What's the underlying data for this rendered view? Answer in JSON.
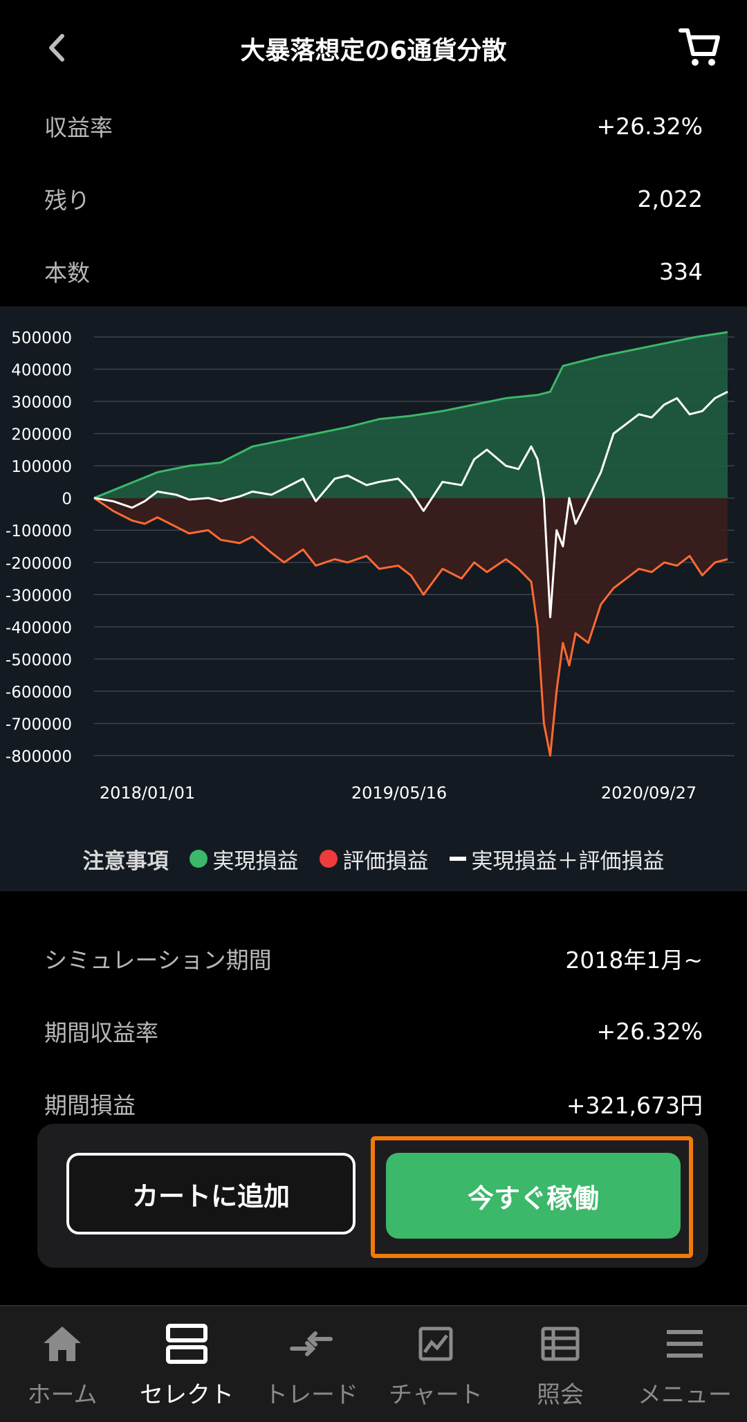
{
  "header": {
    "title": "大暴落想定の6通貨分散"
  },
  "stats_top": [
    {
      "label": "収益率",
      "value": "+26.32%"
    },
    {
      "label": "残り",
      "value": "2,022"
    },
    {
      "label": "本数",
      "value": "334"
    }
  ],
  "chart_data": {
    "type": "area",
    "y_ticks": [
      500000,
      400000,
      300000,
      200000,
      100000,
      0,
      -100000,
      -200000,
      -300000,
      -400000,
      -500000,
      -600000,
      -700000,
      -800000
    ],
    "ylim": [
      -800000,
      520000
    ],
    "x_labels": [
      "2018/01/01",
      "2019/05/16",
      "2020/09/27"
    ],
    "legend_title": "注意事項",
    "grid": true,
    "colors": {
      "realized": "#3bb86a",
      "unrealized": "#ff6a33",
      "total": "#ffffff",
      "realized_fill": "#1f5d40",
      "unrealized_fill": "#3b1e1b"
    },
    "series": [
      {
        "name": "実現損益",
        "t": [
          0,
          0.05,
          0.1,
          0.15,
          0.2,
          0.25,
          0.3,
          0.35,
          0.4,
          0.45,
          0.5,
          0.55,
          0.6,
          0.65,
          0.7,
          0.72,
          0.74,
          0.76,
          0.8,
          0.85,
          0.9,
          0.95,
          1.0
        ],
        "values": [
          0,
          40000,
          80000,
          100000,
          110000,
          160000,
          180000,
          200000,
          220000,
          245000,
          255000,
          270000,
          290000,
          310000,
          320000,
          330000,
          410000,
          420000,
          440000,
          460000,
          480000,
          500000,
          515000
        ]
      },
      {
        "name": "評価損益",
        "t": [
          0,
          0.03,
          0.06,
          0.08,
          0.1,
          0.13,
          0.15,
          0.18,
          0.2,
          0.23,
          0.25,
          0.28,
          0.3,
          0.33,
          0.35,
          0.38,
          0.4,
          0.43,
          0.45,
          0.48,
          0.5,
          0.52,
          0.55,
          0.58,
          0.6,
          0.62,
          0.65,
          0.67,
          0.69,
          0.7,
          0.71,
          0.72,
          0.73,
          0.74,
          0.75,
          0.76,
          0.78,
          0.8,
          0.82,
          0.84,
          0.86,
          0.88,
          0.9,
          0.92,
          0.94,
          0.96,
          0.98,
          1.0
        ],
        "values": [
          0,
          -40000,
          -70000,
          -80000,
          -60000,
          -90000,
          -110000,
          -100000,
          -130000,
          -140000,
          -120000,
          -170000,
          -200000,
          -160000,
          -210000,
          -190000,
          -200000,
          -180000,
          -220000,
          -210000,
          -240000,
          -300000,
          -220000,
          -250000,
          -200000,
          -230000,
          -190000,
          -220000,
          -260000,
          -400000,
          -700000,
          -800000,
          -600000,
          -450000,
          -520000,
          -420000,
          -450000,
          -330000,
          -280000,
          -250000,
          -220000,
          -230000,
          -200000,
          -210000,
          -180000,
          -240000,
          -200000,
          -190000
        ]
      },
      {
        "name": "実現損益＋評価損益",
        "t": [
          0,
          0.03,
          0.06,
          0.08,
          0.1,
          0.13,
          0.15,
          0.18,
          0.2,
          0.23,
          0.25,
          0.28,
          0.3,
          0.33,
          0.35,
          0.38,
          0.4,
          0.43,
          0.45,
          0.48,
          0.5,
          0.52,
          0.55,
          0.58,
          0.6,
          0.62,
          0.65,
          0.67,
          0.69,
          0.7,
          0.71,
          0.72,
          0.73,
          0.74,
          0.75,
          0.76,
          0.78,
          0.8,
          0.82,
          0.84,
          0.86,
          0.88,
          0.9,
          0.92,
          0.94,
          0.96,
          0.98,
          1.0
        ],
        "values": [
          0,
          -10000,
          -30000,
          -10000,
          20000,
          10000,
          -5000,
          0,
          -10000,
          5000,
          20000,
          10000,
          30000,
          60000,
          -10000,
          60000,
          70000,
          40000,
          50000,
          60000,
          20000,
          -40000,
          50000,
          40000,
          120000,
          150000,
          100000,
          90000,
          160000,
          120000,
          0,
          -370000,
          -100000,
          -150000,
          0,
          -80000,
          0,
          80000,
          200000,
          230000,
          260000,
          250000,
          290000,
          310000,
          260000,
          270000,
          310000,
          330000
        ]
      }
    ]
  },
  "details": [
    {
      "label": "シミュレーション期間",
      "value": "2018年1月~"
    },
    {
      "label": "期間収益率",
      "value": "+26.32%"
    },
    {
      "label": "期間損益",
      "value": "+321,673円"
    }
  ],
  "actions": {
    "add_to_cart": "カートに追加",
    "run_now": "今すぐ稼働"
  },
  "nav": [
    {
      "label": "ホーム",
      "icon": "home-icon",
      "active": false
    },
    {
      "label": "セレクト",
      "icon": "select-icon",
      "active": true
    },
    {
      "label": "トレード",
      "icon": "trade-icon",
      "active": false
    },
    {
      "label": "チャート",
      "icon": "chart-icon",
      "active": false
    },
    {
      "label": "照会",
      "icon": "list-icon",
      "active": false
    },
    {
      "label": "メニュー",
      "icon": "menu-icon",
      "active": false
    }
  ]
}
